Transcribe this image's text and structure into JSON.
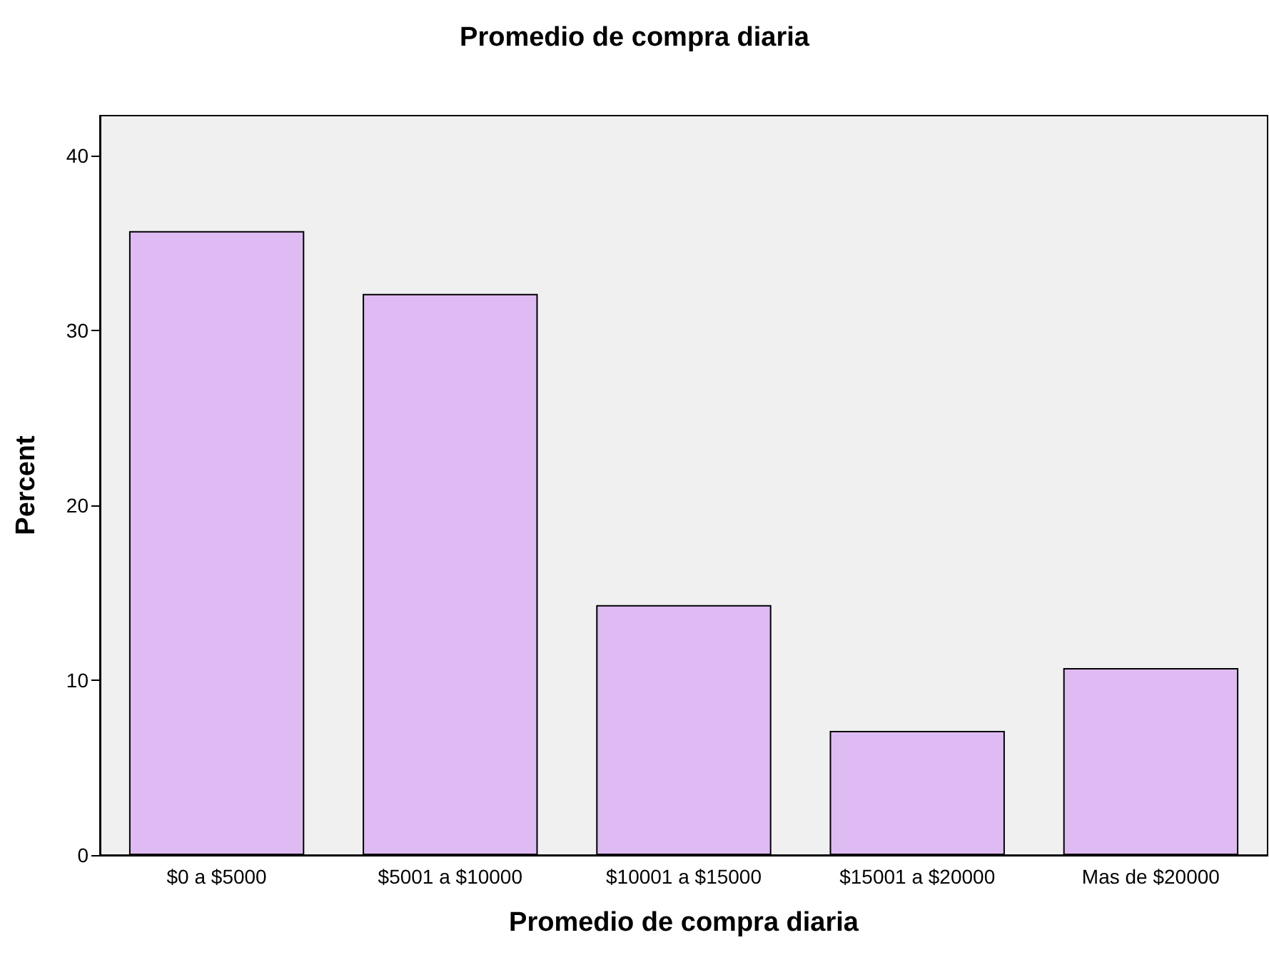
{
  "chart_data": {
    "type": "bar",
    "title": "Promedio de compra diaria",
    "xlabel": "Promedio de compra diaria",
    "ylabel": "Percent",
    "categories": [
      "$0 a $5000",
      "$5001 a $10000",
      "$10001 a $15000",
      "$15001 a $20000",
      "Mas de $20000"
    ],
    "values": [
      35.7,
      32.1,
      14.3,
      7.1,
      10.7
    ],
    "color": "#dfbbf3",
    "ylim": [
      0,
      42.3
    ],
    "yticks": [
      0,
      10,
      20,
      30,
      40
    ],
    "grid": false
  }
}
